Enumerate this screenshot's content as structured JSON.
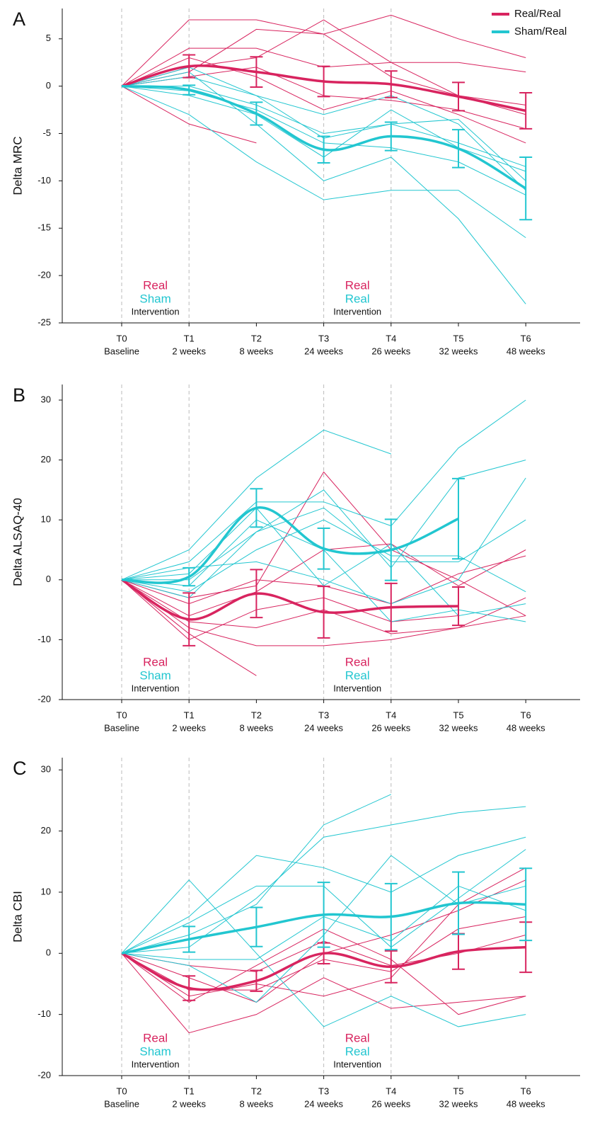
{
  "chart_data": [
    {
      "type": "line",
      "panel_label": "A",
      "y_label": "Delta MRC",
      "categories": [
        "T0",
        "T1",
        "T2",
        "T3",
        "T4",
        "T5",
        "T6"
      ],
      "category_sublabels": [
        "Baseline",
        "2 weeks",
        "8 weeks",
        "24 weeks",
        "26 weeks",
        "32 weeks",
        "48 weeks"
      ],
      "ylim": [
        -25,
        8.2
      ],
      "yticks": [
        -25,
        -20,
        -15,
        -10,
        -5,
        0,
        5
      ],
      "legend": "upper right",
      "annotations": [
        {
          "lines": [
            "Real",
            "Sham",
            "Intervention"
          ]
        },
        {
          "lines": [
            "Real",
            "Real",
            "Intervention"
          ]
        }
      ],
      "series": [
        {
          "name": "Real/Real",
          "color": "#d8245f",
          "values": [
            0,
            2.1,
            1.5,
            0.5,
            0.2,
            -1.1,
            -2.6
          ],
          "errors": [
            null,
            1.2,
            1.6,
            1.6,
            1.4,
            1.5,
            1.9
          ],
          "subjects": [
            [
              0,
              7,
              7,
              5.5,
              7.5,
              5,
              3
            ],
            [
              0,
              4,
              4,
              2,
              2.5,
              2.5,
              1.5
            ],
            [
              0,
              2,
              3,
              7,
              2.5,
              -1,
              -3
            ],
            [
              0,
              1,
              2,
              -1,
              -1.5,
              -2.5,
              -4.5
            ],
            [
              0,
              -4,
              -6,
              null,
              null,
              null,
              null
            ],
            [
              0,
              3,
              1,
              -2.5,
              -0.5,
              -3,
              -6
            ],
            [
              0,
              1.5,
              6,
              5.5,
              1,
              -1,
              -2
            ]
          ]
        },
        {
          "name": "Sham/Real",
          "color": "#22c6d0",
          "values": [
            0,
            -0.4,
            -2.9,
            -6.7,
            -5.3,
            -6.6,
            -10.8
          ],
          "errors": [
            null,
            0.5,
            1.2,
            1.4,
            1.5,
            2.0,
            3.3
          ],
          "subjects": [
            [
              0,
              -3,
              -8,
              -12,
              -11,
              -11,
              -16
            ],
            [
              0,
              1.5,
              -4,
              -10,
              -7.5,
              -14,
              -23
            ],
            [
              0,
              0,
              -2,
              -5,
              -4,
              -3.5,
              -10
            ],
            [
              0,
              -1,
              -3,
              -7.5,
              -2.5,
              -6.5,
              -9
            ],
            [
              0,
              2,
              -1,
              -3,
              -1,
              -4,
              -11
            ],
            [
              0,
              -0.5,
              -2.5,
              -6,
              -6.5,
              -8,
              -11.5
            ],
            [
              0,
              1,
              -1,
              -5.5,
              -4,
              -6,
              -8.5
            ]
          ]
        }
      ]
    },
    {
      "type": "line",
      "panel_label": "B",
      "y_label": "Delta ALSAQ-40",
      "categories": [
        "T0",
        "T1",
        "T2",
        "T3",
        "T4",
        "T5",
        "T6"
      ],
      "category_sublabels": [
        "Baseline",
        "2 weeks",
        "8 weeks",
        "24 weeks",
        "26 weeks",
        "32 weeks",
        "48 weeks"
      ],
      "ylim": [
        -20,
        32.6
      ],
      "yticks": [
        -20,
        -10,
        0,
        10,
        20,
        30
      ],
      "annotations": [
        {
          "lines": [
            "Real",
            "Sham",
            "Intervention"
          ]
        },
        {
          "lines": [
            "Real",
            "Real",
            "Intervention"
          ]
        }
      ],
      "series": [
        {
          "name": "Real/Real",
          "color": "#d8245f",
          "values": [
            0,
            -6.6,
            -2.3,
            -5.4,
            -4.6,
            -4.4,
            null
          ],
          "errors": [
            null,
            4.4,
            4.0,
            4.3,
            4.0,
            3.2,
            null
          ],
          "subjects": [
            [
              0,
              -8,
              -11,
              -11,
              -10,
              -8,
              -3
            ],
            [
              0,
              -9,
              -16,
              null,
              null,
              null,
              null
            ],
            [
              0,
              -3,
              -1,
              18,
              5,
              0,
              -6
            ],
            [
              0,
              -6,
              -2,
              5,
              6,
              -1,
              5
            ],
            [
              0,
              -7,
              -8,
              -5,
              -9,
              -8,
              -6
            ],
            [
              0,
              -4,
              0,
              -1,
              -4,
              1,
              4
            ],
            [
              0,
              -10,
              -5,
              -3,
              -7,
              -6,
              null
            ]
          ]
        },
        {
          "name": "Sham/Real",
          "color": "#22c6d0",
          "values": [
            0,
            0.5,
            12,
            5.2,
            5,
            10.2,
            null
          ],
          "errors": [
            null,
            1.5,
            3.2,
            3.4,
            5.1,
            6.7,
            null
          ],
          "subjects": [
            [
              0,
              5,
              17,
              25,
              21,
              null,
              null
            ],
            [
              0,
              3,
              13,
              13,
              9,
              22,
              30
            ],
            [
              0,
              0,
              8,
              15,
              2,
              17,
              20
            ],
            [
              0,
              -2,
              5,
              10,
              4,
              4,
              -2
            ],
            [
              0,
              2,
              3,
              0,
              -4,
              0,
              17
            ],
            [
              0,
              1,
              12,
              -1,
              6,
              -6,
              -4
            ],
            [
              0,
              -1,
              10,
              5,
              -7,
              -5,
              -7
            ],
            [
              0,
              -3,
              8,
              12,
              3,
              3,
              10
            ]
          ]
        }
      ]
    },
    {
      "type": "line",
      "panel_label": "C",
      "y_label": "Delta CBI",
      "categories": [
        "T0",
        "T1",
        "T2",
        "T3",
        "T4",
        "T5",
        "T6"
      ],
      "category_sublabels": [
        "Baseline",
        "2 weeks",
        "8 weeks",
        "24 weeks",
        "26 weeks",
        "32 weeks",
        "48 weeks"
      ],
      "ylim": [
        -20,
        32
      ],
      "yticks": [
        -20,
        -10,
        0,
        10,
        20,
        30
      ],
      "annotations": [
        {
          "lines": [
            "Real",
            "Sham",
            "Intervention"
          ]
        },
        {
          "lines": [
            "Real",
            "Real",
            "Intervention"
          ]
        }
      ],
      "series": [
        {
          "name": "Real/Real",
          "color": "#d8245f",
          "values": [
            0,
            -5.7,
            -4.5,
            0,
            -2.2,
            0.3,
            1
          ],
          "errors": [
            null,
            2.0,
            1.7,
            1.7,
            2.6,
            2.9,
            4.1
          ],
          "subjects": [
            [
              0,
              -13,
              -10,
              -4,
              -9,
              -8,
              -7
            ],
            [
              0,
              -8,
              -2,
              4,
              -1,
              -10,
              -7
            ],
            [
              0,
              -4,
              -8,
              0,
              3,
              7,
              12
            ],
            [
              0,
              -7,
              -5,
              -7,
              -4,
              8,
              14
            ],
            [
              0,
              -2,
              -3,
              2,
              -2,
              0,
              3
            ],
            [
              0,
              -6,
              -6,
              -1,
              -3,
              4,
              6
            ]
          ]
        },
        {
          "name": "Sham/Real",
          "color": "#22c6d0",
          "values": [
            0,
            2.3,
            4.3,
            6.3,
            6,
            8.2,
            8
          ],
          "errors": [
            null,
            2.1,
            3.2,
            5.3,
            5.4,
            5.1,
            5.9
          ],
          "subjects": [
            [
              0,
              12,
              0,
              -12,
              -7,
              -12,
              -10
            ],
            [
              0,
              6,
              16,
              14,
              10,
              16,
              19
            ],
            [
              0,
              3,
              8,
              21,
              26,
              null,
              null
            ],
            [
              0,
              1,
              9,
              19,
              21,
              23,
              24
            ],
            [
              0,
              -2,
              -8,
              3,
              16,
              8,
              11
            ],
            [
              0,
              5,
              11,
              11,
              1,
              9,
              17
            ],
            [
              0,
              -1,
              -1,
              6,
              2,
              11,
              7
            ]
          ]
        }
      ]
    }
  ]
}
